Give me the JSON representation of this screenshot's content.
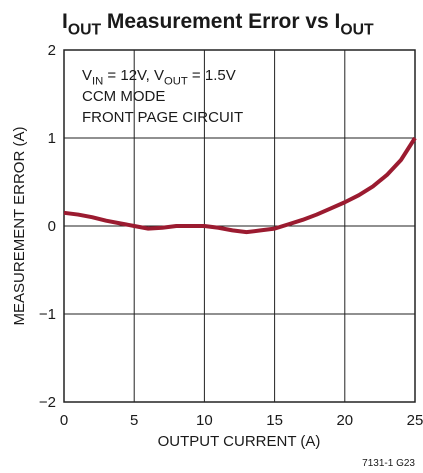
{
  "chart_data": {
    "type": "line",
    "title": [
      {
        "text": "I"
      },
      {
        "text": "OUT",
        "sub": true
      },
      {
        "text": " Measurement Error vs "
      },
      {
        "text": "I"
      },
      {
        "text": "OUT",
        "sub": true
      }
    ],
    "annotations": [
      [
        {
          "text": "V"
        },
        {
          "text": "IN",
          "sub": true
        },
        {
          "text": " = 12V, V"
        },
        {
          "text": "OUT",
          "sub": true
        },
        {
          "text": " = 1.5V"
        }
      ],
      [
        {
          "text": "CCM MODE"
        }
      ],
      [
        {
          "text": "FRONT PAGE CIRCUIT"
        }
      ]
    ],
    "x_label": "OUTPUT CURRENT (A)",
    "y_label": "MEASUREMENT ERROR (A)",
    "footnote": "7131-1 G23",
    "x": [
      0,
      1,
      2,
      3,
      4,
      5,
      6,
      7,
      8,
      9,
      10,
      11,
      12,
      13,
      14,
      15,
      16,
      17,
      18,
      19,
      20,
      21,
      22,
      23,
      24,
      25
    ],
    "values": [
      0.15,
      0.13,
      0.1,
      0.06,
      0.03,
      0.0,
      -0.03,
      -0.02,
      0.0,
      0.0,
      0.0,
      -0.02,
      -0.05,
      -0.07,
      -0.05,
      -0.03,
      0.02,
      0.07,
      0.13,
      0.2,
      0.27,
      0.35,
      0.45,
      0.58,
      0.75,
      1.0
    ],
    "color": "#9b1b30",
    "xlim": [
      0,
      25
    ],
    "ylim": [
      -2,
      2
    ],
    "xticks": [
      0,
      5,
      10,
      15,
      20,
      25
    ],
    "yticks": [
      {
        "value": -2,
        "label": "−2"
      },
      {
        "value": -1,
        "label": "−1"
      },
      0,
      1,
      2
    ],
    "grid": true
  }
}
